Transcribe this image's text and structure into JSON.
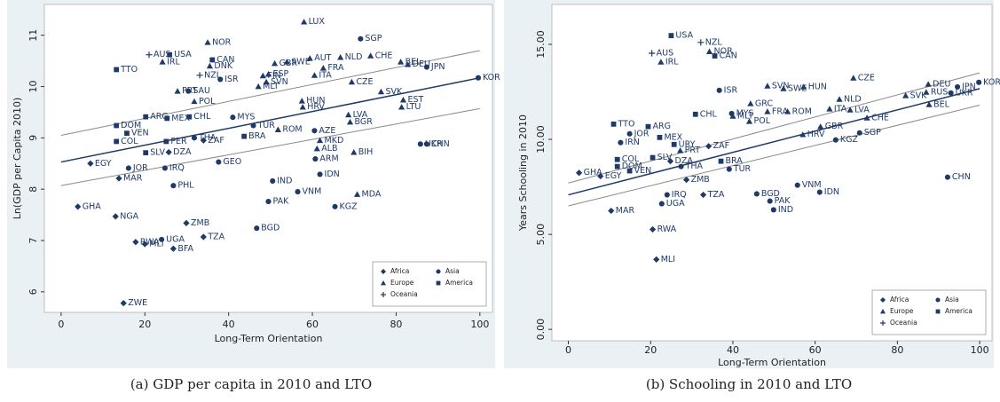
{
  "chart_data": [
    {
      "type": "scatter",
      "caption": "(a)  GDP per capita in 2010 and LTO",
      "x_label": "Long-Term Orientation",
      "y_label": "Ln(GDP per Capita 2010)",
      "xlim": [
        -4,
        103
      ],
      "ylim": [
        5.6,
        11.6
      ],
      "xticks": [
        0,
        20,
        40,
        60,
        80,
        100
      ],
      "yticks": [
        6,
        7,
        8,
        9,
        10,
        11
      ],
      "color": "#1f3a68",
      "legend": "lower right",
      "fit_line": {
        "x": [
          0,
          100
        ],
        "values": [
          8.53,
          10.17
        ]
      },
      "ci_lines": [
        {
          "x": [
            0,
            100
          ],
          "values": [
            9.05,
            10.7
          ]
        },
        {
          "x": [
            0,
            100
          ],
          "values": [
            8.07,
            9.57
          ]
        }
      ],
      "series": [
        {
          "name": "Africa",
          "marker": "diamond",
          "labels": [
            "EGY",
            "MAR",
            "GHA",
            "NGA",
            "ZMB",
            "TZA",
            "MLI",
            "BFA",
            "RWA",
            "ZWE",
            "ZAF",
            "DZA"
          ],
          "x": [
            7.0,
            13.8,
            4.0,
            13.0,
            29.9,
            34.0,
            20.0,
            26.8,
            17.8,
            14.9,
            34.0,
            25.7
          ],
          "values": [
            8.5,
            8.21,
            7.66,
            7.47,
            7.34,
            7.07,
            6.93,
            6.84,
            6.97,
            5.78,
            8.95,
            8.72
          ]
        },
        {
          "name": "Asia",
          "marker": "circle",
          "labels": [
            "SGP",
            "JPN",
            "KOR",
            "ISR",
            "SAU",
            "AZE",
            "ARM",
            "IDN",
            "UKR",
            "CHN",
            "KGZ",
            "VNM",
            "PAK",
            "BGD",
            "IND",
            "TUR",
            "MYS",
            "THA",
            "JOR",
            "IRQ",
            "GEO",
            "PHL",
            "UGA"
          ],
          "x": [
            71.5,
            87.3,
            99.6,
            38.0,
            30.4,
            60.5,
            60.7,
            61.8,
            85.8,
            87.3,
            65.4,
            56.5,
            49.5,
            46.7,
            50.5,
            45.9,
            41.0,
            31.8,
            16.1,
            24.8,
            37.6,
            26.8,
            24.0
          ],
          "values": [
            10.93,
            10.38,
            10.17,
            10.14,
            9.91,
            9.14,
            8.59,
            8.29,
            8.88,
            8.88,
            7.66,
            7.95,
            7.76,
            7.24,
            8.16,
            9.24,
            9.4,
            9.0,
            8.41,
            8.41,
            8.53,
            8.07,
            7.02
          ]
        },
        {
          "name": "Europe",
          "marker": "triangle",
          "labels": [
            "LUX",
            "NOR",
            "IRL",
            "DNK",
            "CHE",
            "NLD",
            "AUT",
            "SWE",
            "GBR",
            "BEL",
            "DEU",
            "FIN",
            "ESP",
            "SVN",
            "FRA",
            "ITA",
            "MLT",
            "CZE",
            "PRT",
            "POL",
            "SVK",
            "EST",
            "LTU",
            "HUN",
            "HRV",
            "LVA",
            "BGR",
            "MKD",
            "ALB",
            "BIH",
            "MDA",
            "ROM"
          ],
          "x": [
            58.0,
            35.0,
            24.2,
            35.5,
            73.9,
            66.7,
            59.4,
            53.9,
            51.0,
            81.1,
            82.8,
            48.2,
            49.5,
            49.0,
            62.6,
            60.5,
            47.1,
            69.4,
            27.8,
            31.8,
            76.4,
            81.7,
            81.3,
            57.5,
            57.7,
            68.6,
            69.0,
            61.8,
            61.1,
            69.9,
            70.7,
            51.8
          ],
          "values": [
            11.26,
            10.86,
            10.48,
            10.4,
            10.6,
            10.57,
            10.55,
            10.48,
            10.45,
            10.48,
            10.43,
            10.21,
            10.24,
            10.09,
            10.36,
            10.22,
            10.0,
            10.09,
            9.91,
            9.71,
            9.9,
            9.74,
            9.6,
            9.72,
            9.6,
            9.45,
            9.31,
            8.95,
            8.79,
            8.72,
            7.9,
            9.16
          ]
        },
        {
          "name": "America",
          "marker": "square",
          "labels": [
            "USA",
            "CAN",
            "TTO",
            "ARG",
            "BRA",
            "CHL",
            "MEX",
            "DOM",
            "VEN",
            "COL",
            "PER",
            "SLV"
          ],
          "x": [
            25.9,
            36.1,
            13.2,
            20.2,
            43.7,
            30.6,
            25.3,
            13.2,
            15.7,
            13.2,
            25.1,
            20.2
          ],
          "values": [
            10.62,
            10.52,
            10.33,
            9.41,
            9.03,
            9.41,
            9.38,
            9.24,
            9.09,
            8.93,
            8.93,
            8.71
          ]
        },
        {
          "name": "Oceania",
          "marker": "plus",
          "labels": [
            "AUS",
            "NZL"
          ],
          "x": [
            21.0,
            33.1
          ],
          "values": [
            10.62,
            10.22
          ]
        }
      ]
    },
    {
      "type": "scatter",
      "caption": "(b)  Schooling in 2010 and LTO",
      "x_label": "Long-Term Orientation",
      "y_label": "Years Schooling in 2010",
      "xlim": [
        -4,
        103
      ],
      "ylim": [
        -0.6,
        17.1
      ],
      "xticks": [
        0,
        20,
        40,
        60,
        80,
        100
      ],
      "yticks": [
        {
          "value": 0,
          "label": "0.00"
        },
        {
          "value": 5,
          "label": "5.00"
        },
        {
          "value": 10,
          "label": "10.00"
        },
        {
          "value": 15,
          "label": "15.00"
        }
      ],
      "color": "#1f3a68",
      "legend": "lower right",
      "fit_line": {
        "x": [
          0,
          100
        ],
        "values": [
          7.08,
          12.67
        ]
      },
      "ci_lines": [
        {
          "x": [
            0,
            100
          ],
          "values": [
            7.7,
            13.5
          ]
        },
        {
          "x": [
            0,
            100
          ],
          "values": [
            6.5,
            11.8
          ]
        }
      ],
      "series": [
        {
          "name": "Africa",
          "marker": "diamond",
          "labels": [
            "GHA",
            "EGY",
            "MAR",
            "RWA",
            "MLI",
            "TZA",
            "ZMB",
            "DZA",
            "ZAF"
          ],
          "x": [
            2.6,
            7.8,
            10.4,
            20.5,
            21.4,
            32.8,
            28.7,
            24.8,
            34.1
          ],
          "values": [
            8.24,
            8.06,
            6.24,
            5.26,
            3.68,
            7.08,
            7.87,
            8.85,
            9.64
          ]
        },
        {
          "name": "Asia",
          "marker": "circle",
          "labels": [
            "KOR",
            "JPN",
            "UKR",
            "ISR",
            "MYS",
            "SGP",
            "KGZ",
            "CHN",
            "IDN",
            "VNM",
            "BGD",
            "PAK",
            "IND",
            "TUR",
            "THA",
            "JOR",
            "IRN",
            "IRQ",
            "UGA"
          ],
          "x": [
            99.8,
            94.6,
            93.0,
            36.7,
            39.7,
            70.8,
            65.0,
            92.2,
            61.1,
            55.7,
            45.8,
            49.0,
            49.9,
            39.1,
            27.4,
            14.9,
            12.7,
            24.0,
            22.7
          ],
          "values": [
            13.0,
            12.76,
            12.44,
            12.58,
            11.36,
            10.34,
            9.97,
            8.01,
            7.22,
            7.59,
            7.13,
            6.75,
            6.29,
            8.43,
            8.57,
            10.29,
            9.83,
            7.08,
            6.61
          ]
        },
        {
          "name": "Europe",
          "marker": "triangle",
          "labels": [
            "IRL",
            "NOR",
            "CZE",
            "DEU",
            "RUS",
            "BEL",
            "SVK",
            "SVN",
            "HUN",
            "SWE",
            "NLD",
            "GRC",
            "MLT",
            "POL",
            "FRA",
            "ROM",
            "ITA",
            "LVA",
            "CHE",
            "GBR",
            "HRV",
            "PRT"
          ],
          "x": [
            22.5,
            34.3,
            69.3,
            87.5,
            87.0,
            87.7,
            82.0,
            48.4,
            57.2,
            52.3,
            65.9,
            44.3,
            40.0,
            44.0,
            48.4,
            53.3,
            63.5,
            68.5,
            72.6,
            61.3,
            57.0,
            27.2
          ],
          "values": [
            14.07,
            14.62,
            13.23,
            12.9,
            12.48,
            11.83,
            12.3,
            12.81,
            12.76,
            12.67,
            12.11,
            11.88,
            11.22,
            10.95,
            11.46,
            11.46,
            11.6,
            11.55,
            11.13,
            10.67,
            10.25,
            9.41
          ]
        },
        {
          "name": "America",
          "marker": "square",
          "labels": [
            "USA",
            "CAN",
            "CHL",
            "BRA",
            "URY",
            "ARG",
            "TTO",
            "MEX",
            "SLV",
            "COL",
            "DOM",
            "VEN"
          ],
          "x": [
            25.0,
            35.6,
            30.9,
            37.1,
            25.7,
            19.4,
            11.0,
            22.2,
            20.5,
            11.9,
            11.9,
            14.9
          ],
          "values": [
            15.46,
            14.39,
            11.32,
            8.85,
            9.73,
            10.67,
            10.8,
            10.1,
            9.04,
            8.94,
            8.57,
            8.34
          ]
        },
        {
          "name": "Oceania",
          "marker": "plus",
          "labels": [
            "AUS",
            "NZL"
          ],
          "x": [
            20.3,
            32.2
          ],
          "values": [
            14.53,
            15.1
          ]
        }
      ]
    }
  ]
}
